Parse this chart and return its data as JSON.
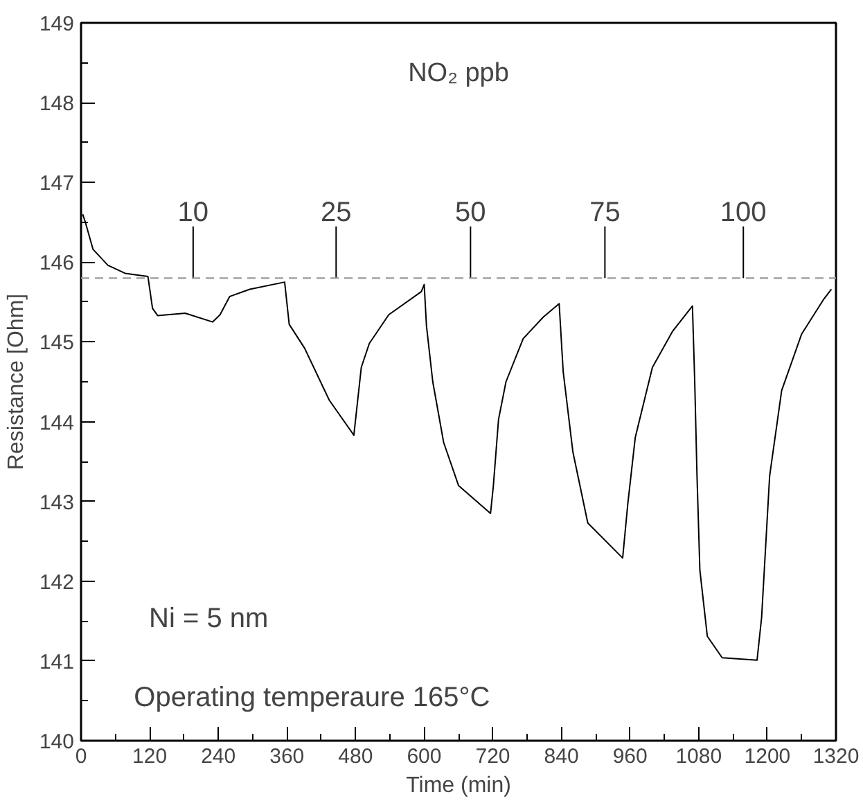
{
  "chart_data": {
    "type": "line",
    "xlabel": "Time (min)",
    "ylabel": "Resistance [Ohm]",
    "xlim": [
      0,
      1320
    ],
    "xticks": [
      0,
      120,
      240,
      360,
      480,
      600,
      720,
      840,
      960,
      1080,
      1200,
      1320
    ],
    "ylim": [
      140,
      149
    ],
    "yticks": [
      140,
      141,
      142,
      143,
      144,
      145,
      146,
      147,
      148,
      149
    ],
    "grid": false,
    "marker": "none",
    "line_style": "solid",
    "series": [
      {
        "color": "#000000",
        "x": [
          3,
          8,
          21,
          47,
          77,
          117,
          125,
          134,
          182,
          230,
          243,
          260,
          295,
          356,
          364,
          391,
          434,
          477,
          490,
          504,
          538,
          595,
          600,
          604,
          615,
          634,
          660,
          716,
          721,
          730,
          743,
          773,
          808,
          836,
          843,
          860,
          886,
          947,
          956,
          969,
          999,
          1034,
          1069,
          1073,
          1077,
          1082,
          1095,
          1121,
          1182,
          1190,
          1204,
          1225,
          1260,
          1299,
          1312
        ],
        "values": [
          146.6,
          146.49,
          146.16,
          145.96,
          145.86,
          145.82,
          145.42,
          145.33,
          145.36,
          145.25,
          145.34,
          145.57,
          145.66,
          145.75,
          145.22,
          144.92,
          144.27,
          143.83,
          144.68,
          144.98,
          145.34,
          145.63,
          145.72,
          145.2,
          144.5,
          143.74,
          143.2,
          142.85,
          143.2,
          144.03,
          144.5,
          145.04,
          145.31,
          145.48,
          144.63,
          143.62,
          142.73,
          142.29,
          142.97,
          143.8,
          144.68,
          145.13,
          145.45,
          144.51,
          143.32,
          142.14,
          141.31,
          141.04,
          141.01,
          141.55,
          143.32,
          144.39,
          145.1,
          145.54,
          145.66
        ]
      }
    ],
    "ref_lines": [
      {
        "axis": "y",
        "value": 145.8,
        "color": "#999999",
        "line_style": "dashed"
      }
    ],
    "annotations": [
      "NO₂ ppb",
      {
        "text": "10",
        "x": 196,
        "y": 145.8
      },
      {
        "text": "25",
        "x": 446,
        "y": 145.8
      },
      {
        "text": "50",
        "x": 681,
        "y": 145.8
      },
      {
        "text": "75",
        "x": 916,
        "y": 145.8
      },
      {
        "text": "100",
        "x": 1158,
        "y": 145.8
      },
      "Ni = 5 nm",
      "Operating temperaure 165°C"
    ]
  }
}
